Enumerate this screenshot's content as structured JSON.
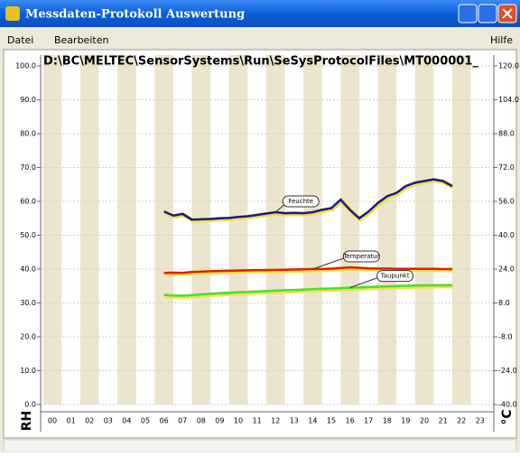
{
  "window": {
    "title": "Messdaten-Protokoll Auswertung",
    "menu": [
      "Datei",
      "Bearbeiten"
    ],
    "help": "Hilfe"
  },
  "chart_data": {
    "type": "line",
    "title": "D:\\BC\\MELTEC\\SensorSystems\\Run\\SeSysProtocolFiles\\MT000001_",
    "categories": [
      "00",
      "01",
      "02",
      "03",
      "04",
      "05",
      "06",
      "07",
      "08",
      "09",
      "10",
      "11",
      "12",
      "13",
      "14",
      "15",
      "16",
      "17",
      "18",
      "19",
      "20",
      "21",
      "22",
      "23"
    ],
    "x": [
      6,
      6.5,
      7,
      7.5,
      8,
      8.5,
      9,
      9.5,
      10,
      10.5,
      11,
      11.5,
      12,
      12.5,
      13,
      13.5,
      14,
      14.5,
      15,
      15.5,
      16,
      16.5,
      17,
      17.5,
      18,
      18.5,
      19,
      19.5,
      20,
      20.5,
      21,
      21.5
    ],
    "ylabel": "RH",
    "y2label": "°C",
    "ylim": [
      0,
      100
    ],
    "yticks": [
      {
        "value": 0,
        "label": "0.0"
      },
      {
        "value": 10,
        "label": "10.0"
      },
      {
        "value": 20,
        "label": "20.0"
      },
      {
        "value": 30,
        "label": "30.0"
      },
      {
        "value": 40,
        "label": "40.0"
      },
      {
        "value": 50,
        "label": "50.0"
      },
      {
        "value": 60,
        "label": "60.0"
      },
      {
        "value": 70,
        "label": "70.0"
      },
      {
        "value": 80,
        "label": "80.0"
      },
      {
        "value": 90,
        "label": "90.0"
      },
      {
        "value": 100,
        "label": "100.0"
      }
    ],
    "y2lim": [
      -40,
      120
    ],
    "y2ticks": [
      {
        "value": -40,
        "label": "-40.0"
      },
      {
        "value": -24,
        "label": "-24.0"
      },
      {
        "value": -8,
        "label": "-8.0"
      },
      {
        "value": 8,
        "label": "8.0"
      },
      {
        "value": 24,
        "label": "24.0"
      },
      {
        "value": 40,
        "label": "40.0"
      },
      {
        "value": 56,
        "label": "56.0"
      },
      {
        "value": 72,
        "label": "72.0"
      },
      {
        "value": 88,
        "label": "88.0"
      },
      {
        "value": 104,
        "label": "104.0"
      },
      {
        "value": 120,
        "label": "120.0"
      }
    ],
    "grid": true,
    "series": [
      {
        "name": "Feuchte",
        "color": "#1a1a8c",
        "values": [
          57,
          55.8,
          56.3,
          54.6,
          54.7,
          54.8,
          55,
          55.1,
          55.4,
          55.6,
          56,
          56.4,
          56.8,
          56.5,
          56.6,
          56.5,
          56.8,
          57.5,
          58,
          60.5,
          57.5,
          55,
          57,
          59.5,
          61.5,
          62.5,
          64.5,
          65.5,
          66,
          66.5,
          66,
          64.5
        ]
      },
      {
        "name": "Temperatur",
        "color": "#e02000",
        "axis": "y2",
        "values": [
          22.2,
          22.3,
          22.2,
          22.6,
          22.8,
          23,
          23.1,
          23.2,
          23.3,
          23.4,
          23.5,
          23.5,
          23.6,
          23.7,
          23.8,
          23.9,
          24,
          24,
          24.2,
          24.5,
          24.8,
          24.6,
          24.3,
          24.2,
          24.2,
          24.1,
          24.1,
          24.1,
          24.1,
          24.1,
          24,
          24
        ]
      },
      {
        "name": "Taupunkt",
        "color": "#40e040",
        "axis": "y2",
        "values": [
          11.8,
          11.5,
          11.4,
          11.7,
          12,
          12.3,
          12.6,
          12.8,
          13,
          13.2,
          13.4,
          13.6,
          13.8,
          14,
          14.1,
          14.3,
          14.5,
          14.7,
          14.8,
          15,
          15.2,
          15.3,
          15.5,
          15.7,
          15.8,
          16,
          16.1,
          16.2,
          16.3,
          16.3,
          16.4,
          16.4
        ]
      }
    ]
  }
}
